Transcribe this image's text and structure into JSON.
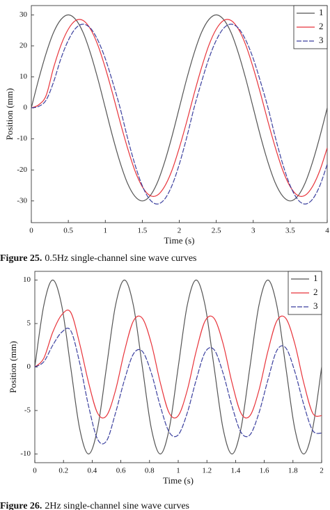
{
  "chart_data": [
    {
      "type": "line",
      "xlabel": "Time (s)",
      "ylabel": "Position (mm)",
      "figure_label": "Figure 25.",
      "caption": "0.5Hz single-channel sine wave curves",
      "x": [
        0,
        0.1,
        0.2,
        0.3,
        0.4,
        0.5,
        0.6,
        0.7,
        0.8,
        0.9,
        1,
        1.1,
        1.2,
        1.3,
        1.4,
        1.5,
        1.6,
        1.7,
        1.8,
        1.9,
        2,
        2.1,
        2.2,
        2.3,
        2.4,
        2.5,
        2.6,
        2.7,
        2.8,
        2.9,
        3,
        3.1,
        3.2,
        3.3,
        3.4,
        3.5,
        3.6,
        3.7,
        3.8,
        3.9,
        4
      ],
      "series": [
        {
          "name": "1",
          "color": "#555555",
          "values": [
            0,
            9.3,
            17.6,
            24.3,
            28.5,
            30,
            28.5,
            24.3,
            17.6,
            9.3,
            0,
            -9.3,
            -17.6,
            -24.3,
            -28.5,
            -30,
            -28.5,
            -24.3,
            -17.6,
            -9.3,
            0,
            9.3,
            17.6,
            24.3,
            28.5,
            30,
            28.5,
            24.3,
            17.6,
            9.3,
            0,
            -9.3,
            -17.6,
            -24.3,
            -28.5,
            -30,
            -28.5,
            -24.3,
            -17.6,
            -9.3,
            0
          ]
        },
        {
          "name": "2",
          "color": "#e8333a",
          "values": [
            0,
            1,
            4,
            12.9,
            20.2,
            25.4,
            28.2,
            28.2,
            25.4,
            20.2,
            12.9,
            4.5,
            -4.5,
            -12.9,
            -20.2,
            -25.4,
            -28.2,
            -28.2,
            -25.4,
            -20.2,
            -12.9,
            -4.5,
            4.5,
            12.9,
            20.2,
            25.4,
            28.2,
            28.2,
            25.4,
            20.2,
            12.9,
            4.5,
            -4.5,
            -12.9,
            -20.2,
            -25.4,
            -28.2,
            -28.2,
            -25.4,
            -20.2,
            -12.9
          ]
        },
        {
          "name": "3",
          "color": "#3a3f9e",
          "values": [
            0,
            0.5,
            2.5,
            8.3,
            15.9,
            21.8,
            25.7,
            27,
            25.7,
            21.8,
            15.9,
            8.3,
            0,
            -9.6,
            -18.2,
            -25.1,
            -29.5,
            -31,
            -29.5,
            -25.1,
            -18.2,
            -9.6,
            0,
            8.3,
            15.9,
            21.8,
            25.7,
            27,
            25.7,
            21.8,
            15.9,
            8.3,
            0,
            -9.6,
            -18.2,
            -25.1,
            -29.5,
            -31,
            -29.5,
            -25.1,
            -18.2
          ]
        }
      ],
      "xlim": [
        0,
        4
      ],
      "xticks": [
        0,
        0.5,
        1,
        1.5,
        2,
        2.5,
        3,
        3.5,
        4
      ],
      "ylim": [
        -37,
        33
      ],
      "yticks": [
        -30,
        -20,
        -10,
        0,
        10,
        20,
        30
      ],
      "grid": false,
      "legend": "upper right"
    },
    {
      "type": "line",
      "xlabel": "Time (s)",
      "ylabel": "Position (mm)",
      "figure_label": "Figure 26.",
      "caption": "2Hz single-channel sine wave curves",
      "x": [
        0,
        0.0625,
        0.125,
        0.1875,
        0.25,
        0.3125,
        0.375,
        0.4375,
        0.5,
        0.5625,
        0.625,
        0.6875,
        0.75,
        0.8125,
        0.875,
        0.9375,
        1,
        1.0625,
        1.125,
        1.1875,
        1.25,
        1.3125,
        1.375,
        1.4375,
        1.5,
        1.5625,
        1.625,
        1.6875,
        1.75,
        1.8125,
        1.875,
        1.9375,
        2
      ],
      "series": [
        {
          "name": "1",
          "color": "#555555",
          "values": [
            0,
            7.07,
            10,
            7.07,
            0,
            -7.07,
            -10,
            -7.07,
            0,
            7.07,
            10,
            7.07,
            0,
            -7.07,
            -10,
            -7.07,
            0,
            7.07,
            10,
            7.07,
            0,
            -7.07,
            -10,
            -7.07,
            0,
            7.07,
            10,
            7.07,
            0,
            -7.07,
            -10,
            -7.07,
            0
          ]
        },
        {
          "name": "2",
          "color": "#e8333a",
          "values": [
            0,
            1,
            4,
            6,
            6.3,
            2.7,
            -1.8,
            -5.3,
            -5.6,
            -2.7,
            1.8,
            5.3,
            5.6,
            2.7,
            -1.8,
            -5.3,
            -5.6,
            -2.7,
            1.8,
            5.3,
            5.6,
            2.7,
            -1.8,
            -5.3,
            -5.6,
            -2.7,
            1.8,
            5.3,
            5.6,
            2.7,
            -1.8,
            -5.3,
            -5.6
          ]
        },
        {
          "name": "3",
          "color": "#3a3f9e",
          "values": [
            0,
            0.6,
            2.5,
            4,
            4.2,
            0.5,
            -4.5,
            -8.3,
            -8.5,
            -5.3,
            -1.5,
            1.5,
            1.8,
            -0.7,
            -4.5,
            -7.5,
            -7.8,
            -5.3,
            -1.5,
            1.7,
            2,
            -0.7,
            -4.5,
            -7.5,
            -7.8,
            -5.3,
            -1.5,
            1.9,
            2.2,
            -0.5,
            -4.3,
            -7.3,
            -7.6
          ]
        }
      ],
      "xlim": [
        0,
        2
      ],
      "xticks": [
        0,
        0.2,
        0.4,
        0.6,
        0.8,
        1,
        1.2,
        1.4,
        1.6,
        1.8,
        2
      ],
      "ylim": [
        -11,
        11
      ],
      "yticks": [
        -10,
        -5,
        0,
        5,
        10
      ],
      "grid": false,
      "legend": "upper right"
    }
  ]
}
